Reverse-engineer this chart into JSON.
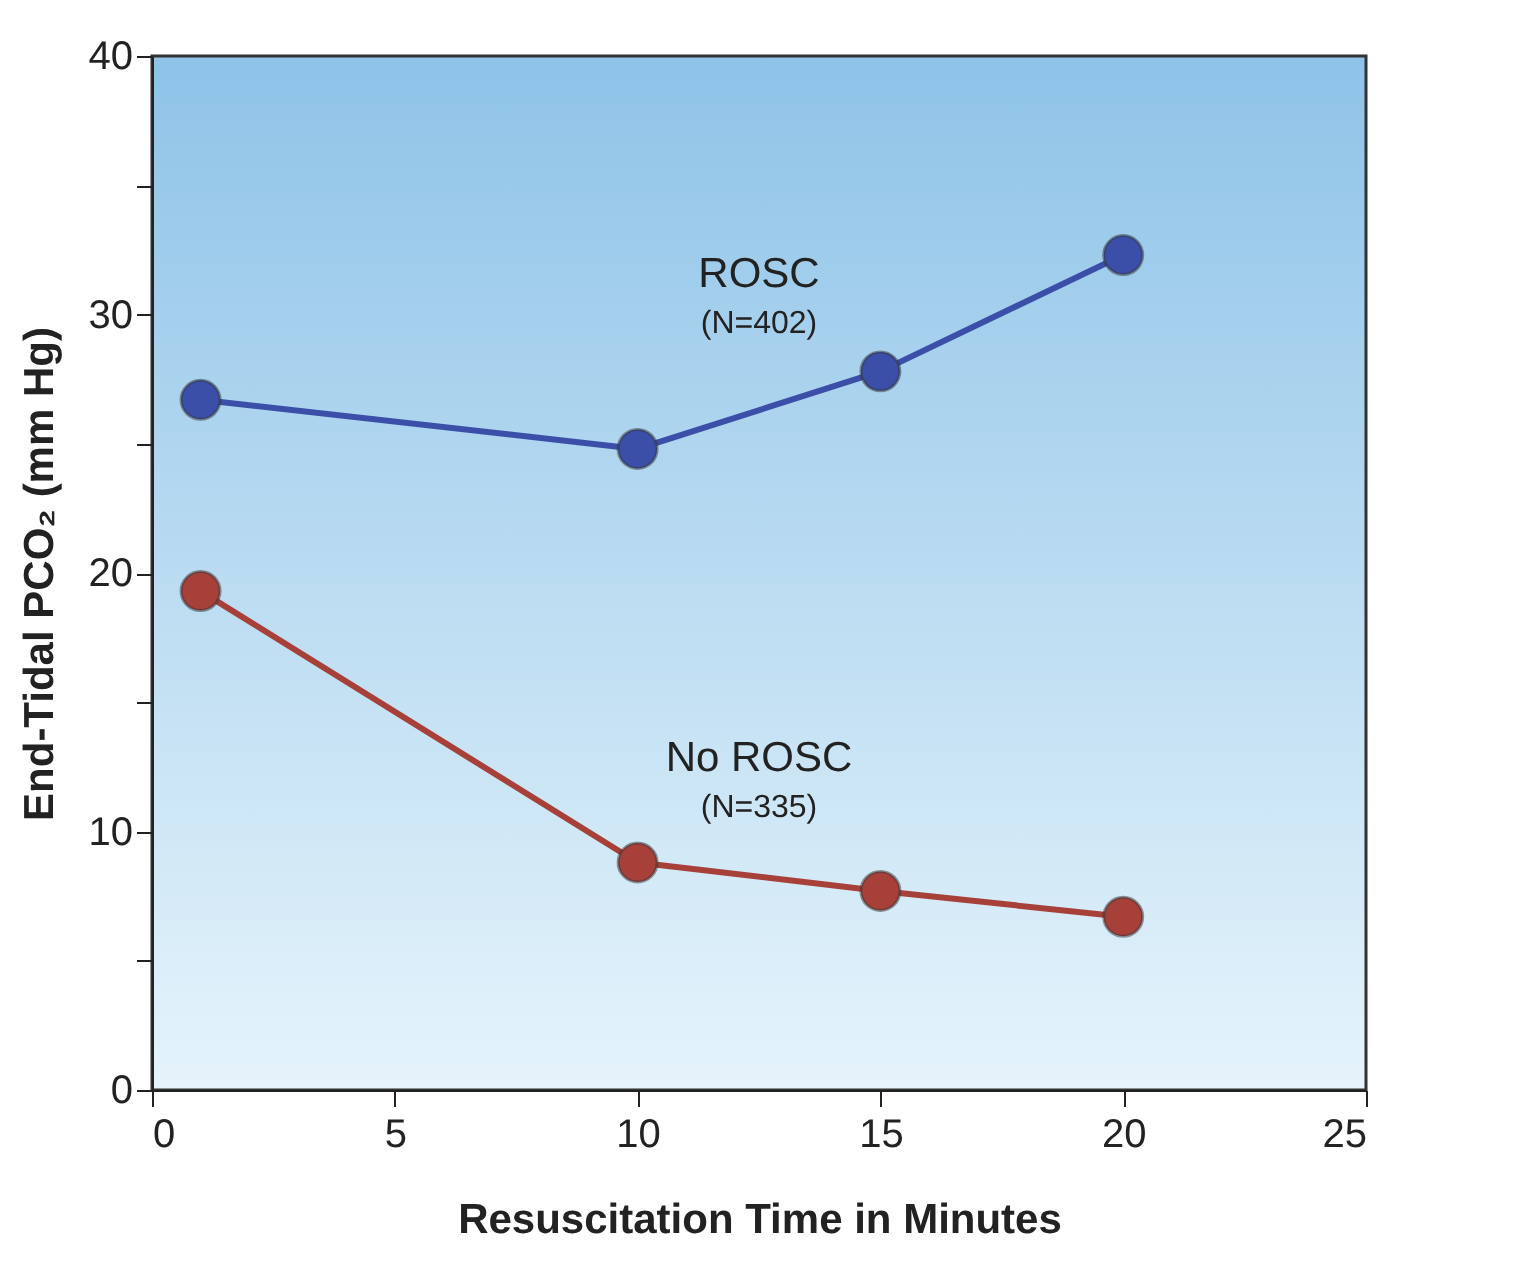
{
  "chart_data": {
    "type": "line",
    "xlabel": "Resuscitation Time in Minutes",
    "ylabel": "End-Tidal PCO₂ (mm Hg)",
    "x": [
      1,
      10,
      15,
      20
    ],
    "series": [
      {
        "name": "ROSC",
        "color": "#3b4fa8",
        "values": [
          26.7,
          24.8,
          27.8,
          32.3
        ]
      },
      {
        "name": "No ROSC",
        "color": "#a8403a",
        "values": [
          19.3,
          8.8,
          7.7,
          6.7
        ]
      }
    ],
    "annotations": [
      "(N=402)",
      "(N=335)"
    ],
    "xlim": [
      0,
      25
    ],
    "xticks": [
      0,
      5,
      10,
      15,
      20,
      25
    ],
    "ylim": [
      0,
      40
    ],
    "yticks": [
      0,
      {
        "value": 5,
        "label": null
      },
      10,
      {
        "value": 15,
        "label": null
      },
      20,
      {
        "value": 25,
        "label": null
      },
      30,
      {
        "value": 35,
        "label": null
      },
      40
    ],
    "marker": "circle",
    "line_style": "solid",
    "grid": false,
    "legend": false
  }
}
